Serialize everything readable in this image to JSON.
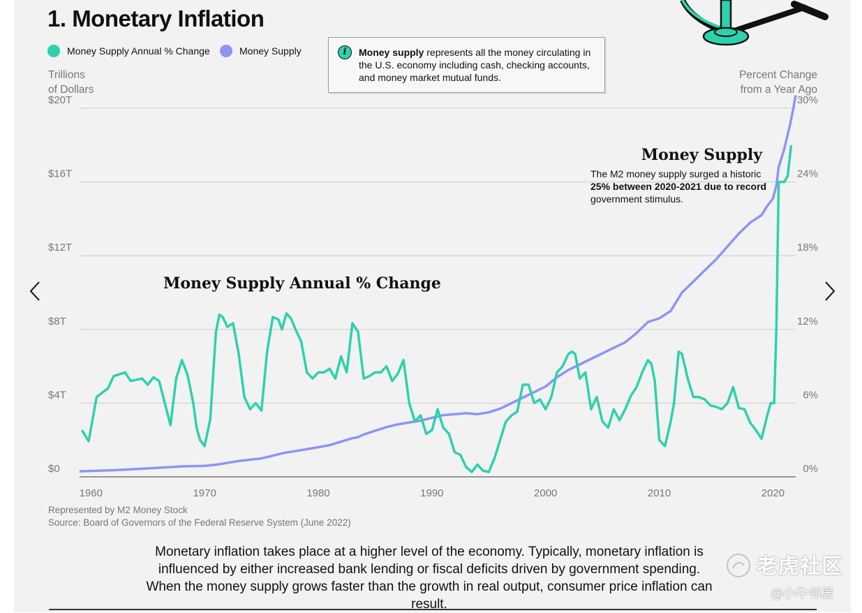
{
  "header": {
    "title": "1. Monetary Inflation",
    "legend": [
      {
        "label": "Money Supply Annual % Change",
        "color": "#2ed1ad"
      },
      {
        "label": "Money Supply",
        "color": "#8e94f2"
      }
    ]
  },
  "info_box": {
    "icon": "info-icon",
    "glyph": "i",
    "bold": "Money supply",
    "text": " represents all the money circulating in the U.S. economy including cash, checking accounts, and money market mutual funds."
  },
  "axes": {
    "left_title": "Trillions\nof Dollars",
    "right_title": "Percent Change\nfrom a Year Ago"
  },
  "chart_data": {
    "type": "line",
    "title": "Monetary Inflation",
    "xlabel": "",
    "ylabel_left": "Trillions of Dollars",
    "ylabel_right": "Percent Change from a Year Ago",
    "xlim": [
      1959,
      2022
    ],
    "ylim_left": [
      0,
      20
    ],
    "ylim_right": [
      0,
      30
    ],
    "x_ticks": [
      "1960",
      "1970",
      "1980",
      "1990",
      "2000",
      "2010",
      "2020"
    ],
    "left_ticks": [
      "$0",
      "$4T",
      "$8T",
      "$12T",
      "$16T",
      "$20T"
    ],
    "right_ticks": [
      "0%",
      "6%",
      "12%",
      "18%",
      "24%",
      "30%"
    ],
    "series": [
      {
        "name": "Money Supply",
        "axis": "left",
        "color": "#8e94f2",
        "x": [
          1959,
          1962,
          1965,
          1968,
          1970,
          1971,
          1973,
          1975,
          1977,
          1979,
          1981,
          1983,
          1983.5,
          1984,
          1986,
          1987,
          1988,
          1989,
          1990,
          1991,
          1992,
          1993,
          1994,
          1995,
          1996,
          1997,
          1998,
          1999,
          2000,
          2001,
          2002,
          2003,
          2004,
          2005,
          2006,
          2007,
          2008,
          2009,
          2010,
          2011,
          2012,
          2013,
          2014,
          2015,
          2016,
          2017,
          2018,
          2019,
          2019.5,
          2020,
          2020.3,
          2020.5,
          2021,
          2021.5,
          2021.8,
          2022
        ],
        "values": [
          0.3,
          0.36,
          0.46,
          0.57,
          0.6,
          0.66,
          0.86,
          1.0,
          1.3,
          1.5,
          1.72,
          2.1,
          2.15,
          2.3,
          2.7,
          2.85,
          2.95,
          3.05,
          3.2,
          3.35,
          3.4,
          3.45,
          3.4,
          3.5,
          3.7,
          4.0,
          4.3,
          4.6,
          4.9,
          5.4,
          5.8,
          6.1,
          6.4,
          6.7,
          7.0,
          7.3,
          7.8,
          8.4,
          8.6,
          9.0,
          10.0,
          10.6,
          11.2,
          11.8,
          12.5,
          13.2,
          13.8,
          14.2,
          14.7,
          15.1,
          15.8,
          16.8,
          17.8,
          19.1,
          20.0,
          20.7
        ]
      },
      {
        "name": "Money Supply Annual % Change",
        "axis": "right",
        "color": "#2ed1ad",
        "x": [
          1959.2,
          1959.8,
          1960.5,
          1961.5,
          1962,
          1963,
          1963.5,
          1964.5,
          1965,
          1965.5,
          1966,
          1966.5,
          1967,
          1967.5,
          1968,
          1968.5,
          1969,
          1969.3,
          1969.6,
          1970,
          1970.5,
          1971,
          1971.3,
          1971.6,
          1972,
          1972.5,
          1973,
          1973.5,
          1974,
          1974.5,
          1975,
          1975.5,
          1976,
          1976.5,
          1976.8,
          1977.2,
          1977.6,
          1978,
          1978.5,
          1979,
          1979.5,
          1980,
          1980.5,
          1981,
          1981.5,
          1982,
          1982.5,
          1983,
          1983.5,
          1984,
          1984.5,
          1985,
          1985.5,
          1986,
          1986.5,
          1987,
          1987.5,
          1988,
          1988.5,
          1989,
          1989.5,
          1990,
          1990.5,
          1991,
          1991.5,
          1992,
          1992.5,
          1993,
          1993.5,
          1994,
          1994.5,
          1995,
          1995.5,
          1996,
          1996.5,
          1997,
          1997.5,
          1998,
          1998.5,
          1999,
          1999.5,
          2000,
          2000.5,
          2001,
          2001.5,
          2002,
          2002.3,
          2002.6,
          2003,
          2003.5,
          2004,
          2004.5,
          2005,
          2005.5,
          2006,
          2006.5,
          2007,
          2007.5,
          2008,
          2008.5,
          2009,
          2009.3,
          2009.6,
          2010,
          2010.5,
          2011,
          2011.3,
          2011.7,
          2012,
          2012.5,
          2013,
          2013.5,
          2014,
          2014.5,
          2015,
          2015.5,
          2016,
          2016.5,
          2017,
          2017.5,
          2018,
          2018.5,
          2019,
          2019.5,
          2019.8,
          2020.1,
          2020.3,
          2020.5,
          2021,
          2021.3,
          2021.6
        ],
        "values": [
          3.8,
          2.9,
          6.5,
          7.2,
          8.2,
          8.5,
          7.8,
          8.0,
          7.5,
          8.1,
          7.8,
          6.0,
          4.2,
          8.0,
          9.5,
          8.3,
          6.0,
          4.0,
          3.0,
          2.5,
          4.7,
          11.8,
          13.2,
          13.0,
          12.2,
          12.5,
          10.0,
          6.5,
          5.5,
          6.0,
          5.4,
          10.2,
          13.0,
          12.8,
          12.0,
          13.3,
          12.9,
          12.0,
          11.0,
          8.5,
          8.0,
          8.5,
          8.5,
          8.8,
          8.0,
          9.8,
          8.5,
          12.5,
          11.8,
          8.0,
          8.2,
          8.5,
          8.5,
          9.0,
          7.8,
          8.4,
          9.5,
          6.0,
          4.5,
          5.0,
          3.5,
          3.8,
          5.5,
          4.0,
          3.5,
          2.0,
          1.8,
          0.8,
          0.4,
          1.0,
          0.5,
          0.4,
          1.5,
          3.0,
          4.5,
          5.0,
          5.3,
          7.5,
          7.5,
          6.0,
          6.3,
          5.5,
          6.5,
          8.5,
          9.0,
          10.0,
          10.2,
          10.0,
          8.0,
          8.5,
          5.5,
          6.5,
          4.5,
          4.0,
          5.5,
          4.6,
          5.5,
          6.6,
          7.3,
          8.5,
          9.5,
          9.2,
          7.8,
          3.0,
          2.5,
          4.5,
          6.0,
          10.2,
          10.0,
          8.0,
          6.5,
          6.5,
          6.3,
          5.8,
          5.7,
          5.5,
          6.0,
          7.3,
          5.6,
          5.5,
          4.4,
          3.8,
          3.1,
          5.0,
          6.0,
          6.0,
          12.0,
          24.0,
          24.0,
          24.5,
          27.0
        ]
      }
    ],
    "annotations": [
      {
        "target": "Money Supply",
        "title": "Money Supply",
        "lines": [
          "The M2 money supply surged a historic",
          "25% between 2020-2021 due to record",
          "government stimulus."
        ]
      },
      {
        "target": "Money Supply Annual % Change",
        "title": "Money Supply Annual % Change"
      }
    ]
  },
  "footnote": {
    "line1": "Represented by M2 Money Stock",
    "line2": "Source: Board of Governors of the Federal Reserve System (June 2022)"
  },
  "description": "Monetary inflation takes place at a higher level of the economy. Typically, monetary inflation is influenced by either increased bank lending or fiscal deficits driven by government spending. When the money supply grows faster than the growth in real output, consumer price inflation can result.",
  "navigation": {
    "prev_icon": "chevron-left-icon",
    "next_icon": "chevron-right-icon"
  },
  "watermark": {
    "main": "老虎社区",
    "sub": "@小牛邻居"
  },
  "colors": {
    "teal": "#2ed1ad",
    "purple": "#8e94f2",
    "card_bg": "#f2f2f2",
    "grid": "#cccccc"
  }
}
